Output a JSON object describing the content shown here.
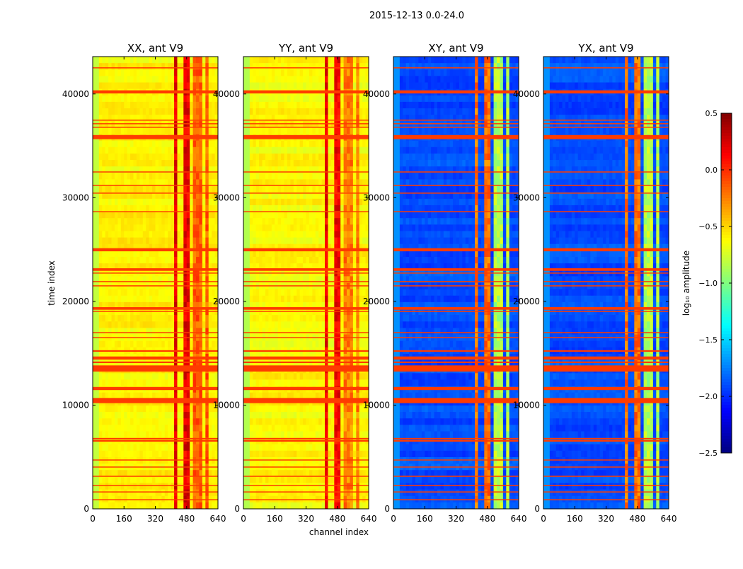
{
  "chart_data": {
    "type": "heatmap",
    "suptitle": "2015-12-13 0.0-24.0",
    "xlabel": "channel index",
    "ylabel": "time index",
    "xlim": [
      0,
      640
    ],
    "ylim": [
      0,
      43600
    ],
    "xticks": [
      "0",
      "160",
      "320",
      "480",
      "640"
    ],
    "xtick_values": [
      0,
      160,
      320,
      480,
      640
    ],
    "yticks": [
      "0",
      "10000",
      "20000",
      "30000",
      "40000"
    ],
    "ytick_values": [
      0,
      10000,
      20000,
      30000,
      40000
    ],
    "panels": [
      {
        "title": "XX, ant V9",
        "base": -0.6,
        "edge": -0.8,
        "band": -0.15,
        "band_hot": 0.2,
        "show_ylabel": true
      },
      {
        "title": "YY, ant V9",
        "base": -0.62,
        "edge": -0.85,
        "band": -0.25,
        "band_hot": 0.15,
        "show_xlabel": true
      },
      {
        "title": "XY, ant V9",
        "base": -1.9,
        "edge": -1.7,
        "band": -0.85,
        "band_hot": -0.2
      },
      {
        "title": "YX, ant V9",
        "base": -1.9,
        "edge": -1.7,
        "band": -0.85,
        "band_hot": -0.2
      }
    ],
    "band_channels": [
      [
        410,
        440
      ],
      [
        470,
        500
      ],
      [
        520,
        560
      ],
      [
        575,
        600
      ]
    ],
    "flagged_rows": [
      [
        42530,
        80
      ],
      [
        40200,
        300
      ],
      [
        37475,
        100
      ],
      [
        37130,
        100
      ],
      [
        36790,
        100
      ],
      [
        35840,
        400
      ],
      [
        32490,
        80
      ],
      [
        31190,
        80
      ],
      [
        30440,
        100
      ],
      [
        28670,
        60
      ],
      [
        24980,
        300
      ],
      [
        23070,
        250
      ],
      [
        22730,
        100
      ],
      [
        21910,
        100
      ],
      [
        21500,
        100
      ],
      [
        19320,
        250
      ],
      [
        19040,
        100
      ],
      [
        17000,
        80
      ],
      [
        16520,
        80
      ],
      [
        15220,
        150
      ],
      [
        14540,
        300
      ],
      [
        14130,
        150
      ],
      [
        13580,
        500
      ],
      [
        13310,
        150
      ],
      [
        11600,
        300
      ],
      [
        10440,
        500
      ],
      [
        6760,
        150
      ],
      [
        6550,
        150
      ],
      [
        4710,
        100
      ],
      [
        4030,
        100
      ],
      [
        3140,
        100
      ],
      [
        2250,
        80
      ],
      [
        1640,
        80
      ],
      [
        890,
        80
      ]
    ],
    "flag_value": -0.05,
    "colorbar": {
      "label": "log₁₀ amplitude",
      "range": [
        -2.5,
        0.5
      ],
      "ticks": [
        "0.5",
        "0.0",
        "−0.5",
        "−1.0",
        "−1.5",
        "−2.0",
        "−2.5"
      ],
      "tick_values": [
        0.5,
        0,
        -0.5,
        -1,
        -1.5,
        -2,
        -2.5
      ],
      "colormap": "jet"
    }
  }
}
